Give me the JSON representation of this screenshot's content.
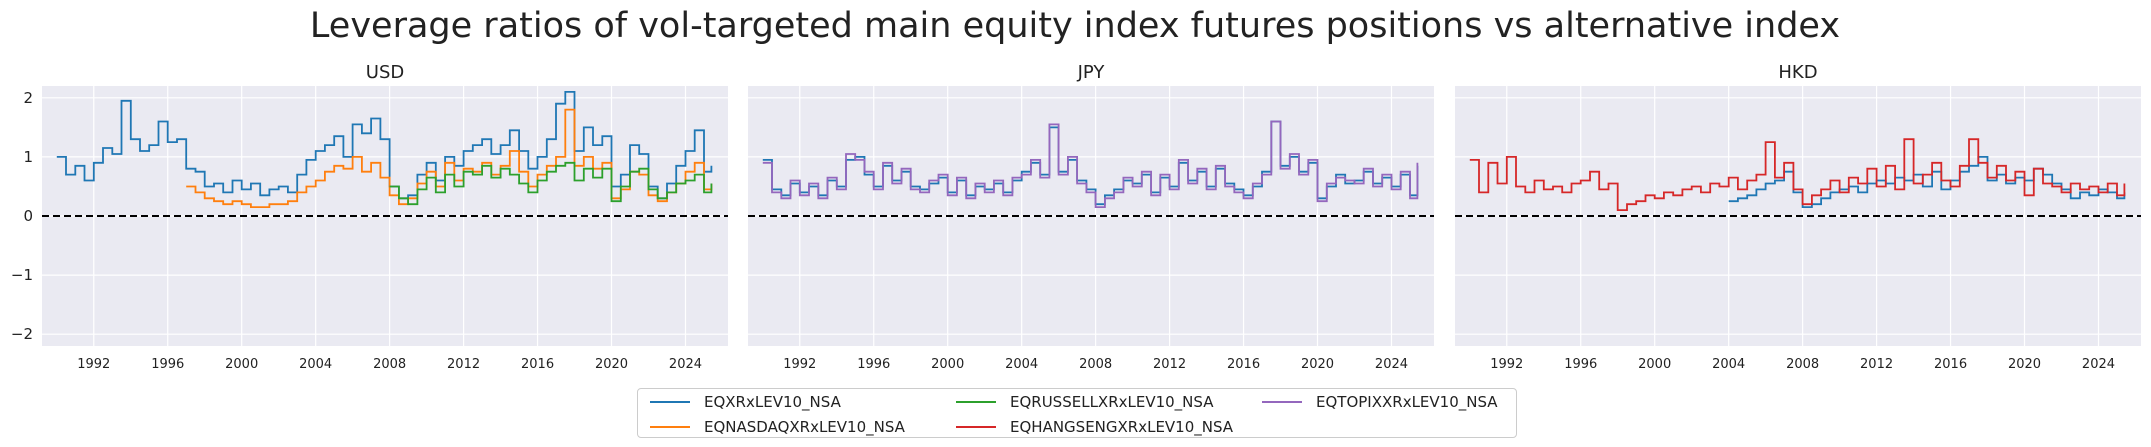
{
  "title": "Leverage ratios of vol-targeted main equity index futures positions vs alternative index",
  "colors": {
    "plot_bg": "#eaeaf2",
    "grid": "#ffffff",
    "zero_line": "#000000"
  },
  "chart_data": [
    {
      "type": "line",
      "title": "USD",
      "xlim": [
        1989.2,
        2026.3
      ],
      "ylim": [
        -2.2,
        2.2
      ],
      "yticks": [
        -2,
        -1,
        0,
        1,
        2
      ],
      "xticks": [
        1992,
        1996,
        2000,
        2004,
        2008,
        2012,
        2016,
        2020,
        2024
      ],
      "grid": true,
      "zero_line": true,
      "series": [
        {
          "name": "EQXRxLEV10_NSA",
          "color": "#1f77b4",
          "x": [
            1990.0,
            1990.5,
            1991.0,
            1991.5,
            1992.0,
            1992.5,
            1993.0,
            1993.5,
            1994.0,
            1994.5,
            1995.0,
            1995.5,
            1996.0,
            1996.5,
            1997.0,
            1997.5,
            1998.0,
            1998.5,
            1999.0,
            1999.5,
            2000.0,
            2000.5,
            2001.0,
            2001.5,
            2002.0,
            2002.5,
            2003.0,
            2003.5,
            2004.0,
            2004.5,
            2005.0,
            2005.5,
            2006.0,
            2006.5,
            2007.0,
            2007.5,
            2008.0,
            2008.5,
            2009.0,
            2009.5,
            2010.0,
            2010.5,
            2011.0,
            2011.5,
            2012.0,
            2012.5,
            2013.0,
            2013.5,
            2014.0,
            2014.5,
            2015.0,
            2015.5,
            2016.0,
            2016.5,
            2017.0,
            2017.5,
            2018.0,
            2018.5,
            2019.0,
            2019.5,
            2020.0,
            2020.5,
            2021.0,
            2021.5,
            2022.0,
            2022.5,
            2023.0,
            2023.5,
            2024.0,
            2024.5,
            2025.0,
            2025.4
          ],
          "y": [
            1.0,
            0.7,
            0.85,
            0.6,
            0.9,
            1.15,
            1.05,
            1.95,
            1.3,
            1.1,
            1.2,
            1.6,
            1.25,
            1.3,
            0.8,
            0.75,
            0.5,
            0.55,
            0.4,
            0.6,
            0.45,
            0.55,
            0.35,
            0.45,
            0.5,
            0.4,
            0.7,
            0.95,
            1.1,
            1.2,
            1.35,
            1.0,
            1.55,
            1.4,
            1.65,
            1.3,
            0.5,
            0.3,
            0.35,
            0.7,
            0.9,
            0.6,
            1.0,
            0.85,
            1.1,
            1.2,
            1.3,
            1.05,
            1.2,
            1.45,
            1.1,
            0.8,
            1.0,
            1.3,
            1.9,
            2.1,
            1.1,
            1.5,
            1.2,
            1.35,
            0.5,
            0.7,
            1.2,
            1.05,
            0.5,
            0.3,
            0.55,
            0.85,
            1.1,
            1.45,
            0.75,
            0.85
          ]
        },
        {
          "name": "EQNASDAQXRxLEV10_NSA",
          "color": "#ff7f0e",
          "x": [
            1997.0,
            1997.5,
            1998.0,
            1998.5,
            1999.0,
            1999.5,
            2000.0,
            2000.5,
            2001.0,
            2001.5,
            2002.0,
            2002.5,
            2003.0,
            2003.5,
            2004.0,
            2004.5,
            2005.0,
            2005.5,
            2006.0,
            2006.5,
            2007.0,
            2007.5,
            2008.0,
            2008.5,
            2009.0,
            2009.5,
            2010.0,
            2010.5,
            2011.0,
            2011.5,
            2012.0,
            2012.5,
            2013.0,
            2013.5,
            2014.0,
            2014.5,
            2015.0,
            2015.5,
            2016.0,
            2016.5,
            2017.0,
            2017.5,
            2018.0,
            2018.5,
            2019.0,
            2019.5,
            2020.0,
            2020.5,
            2021.0,
            2021.5,
            2022.0,
            2022.5,
            2023.0,
            2023.5,
            2024.0,
            2024.5,
            2025.0,
            2025.4
          ],
          "y": [
            0.5,
            0.4,
            0.3,
            0.25,
            0.2,
            0.25,
            0.2,
            0.15,
            0.15,
            0.2,
            0.2,
            0.25,
            0.4,
            0.5,
            0.6,
            0.75,
            0.85,
            0.8,
            1.0,
            0.75,
            0.9,
            0.65,
            0.35,
            0.2,
            0.3,
            0.55,
            0.75,
            0.5,
            0.9,
            0.6,
            0.8,
            0.75,
            0.9,
            0.7,
            0.85,
            1.1,
            0.75,
            0.5,
            0.7,
            0.85,
            1.0,
            1.8,
            0.85,
            1.0,
            0.8,
            0.9,
            0.3,
            0.45,
            0.75,
            0.7,
            0.35,
            0.25,
            0.4,
            0.55,
            0.75,
            0.9,
            0.45,
            0.55
          ]
        },
        {
          "name": "EQRUSSELLXRxLEV10_NSA",
          "color": "#2ca02c",
          "x": [
            2008.0,
            2008.5,
            2009.0,
            2009.5,
            2010.0,
            2010.5,
            2011.0,
            2011.5,
            2012.0,
            2012.5,
            2013.0,
            2013.5,
            2014.0,
            2014.5,
            2015.0,
            2015.5,
            2016.0,
            2016.5,
            2017.0,
            2017.5,
            2018.0,
            2018.5,
            2019.0,
            2019.5,
            2020.0,
            2020.5,
            2021.0,
            2021.5,
            2022.0,
            2022.5,
            2023.0,
            2023.5,
            2024.0,
            2024.5,
            2025.0,
            2025.4
          ],
          "y": [
            0.5,
            0.3,
            0.2,
            0.45,
            0.65,
            0.4,
            0.7,
            0.5,
            0.75,
            0.7,
            0.85,
            0.65,
            0.8,
            0.7,
            0.55,
            0.4,
            0.6,
            0.75,
            0.85,
            0.9,
            0.6,
            0.8,
            0.65,
            0.8,
            0.25,
            0.5,
            0.75,
            0.8,
            0.45,
            0.3,
            0.4,
            0.55,
            0.6,
            0.7,
            0.4,
            0.55
          ]
        }
      ]
    },
    {
      "type": "line",
      "title": "JPY",
      "xlim": [
        1989.2,
        2026.3
      ],
      "ylim": [
        -2.2,
        2.2
      ],
      "yticks": [
        -2,
        -1,
        0,
        1,
        2
      ],
      "xticks": [
        1992,
        1996,
        2000,
        2004,
        2008,
        2012,
        2016,
        2020,
        2024
      ],
      "grid": true,
      "zero_line": true,
      "series": [
        {
          "name": "EQXRxLEV10_NSA",
          "color": "#1f77b4",
          "x": [
            1990.0,
            1990.5,
            1991.0,
            1991.5,
            1992.0,
            1992.5,
            1993.0,
            1993.5,
            1994.0,
            1994.5,
            1995.0,
            1995.5,
            1996.0,
            1996.5,
            1997.0,
            1997.5,
            1998.0,
            1998.5,
            1999.0,
            1999.5,
            2000.0,
            2000.5,
            2001.0,
            2001.5,
            2002.0,
            2002.5,
            2003.0,
            2003.5,
            2004.0,
            2004.5,
            2005.0,
            2005.5,
            2006.0,
            2006.5,
            2007.0,
            2007.5,
            2008.0,
            2008.5,
            2009.0,
            2009.5,
            2010.0,
            2010.5,
            2011.0,
            2011.5,
            2012.0,
            2012.5,
            2013.0,
            2013.5,
            2014.0,
            2014.5,
            2015.0,
            2015.5,
            2016.0,
            2016.5,
            2017.0,
            2017.5,
            2018.0,
            2018.5,
            2019.0,
            2019.5,
            2020.0,
            2020.5,
            2021.0,
            2021.5,
            2022.0,
            2022.5,
            2023.0,
            2023.5,
            2024.0,
            2024.5,
            2025.0,
            2025.4
          ],
          "y": [
            0.95,
            0.45,
            0.35,
            0.55,
            0.4,
            0.5,
            0.35,
            0.6,
            0.5,
            0.95,
            1.0,
            0.7,
            0.5,
            0.85,
            0.6,
            0.75,
            0.5,
            0.45,
            0.55,
            0.65,
            0.4,
            0.6,
            0.35,
            0.5,
            0.45,
            0.55,
            0.4,
            0.6,
            0.75,
            0.9,
            0.7,
            1.5,
            0.75,
            0.95,
            0.6,
            0.45,
            0.2,
            0.35,
            0.45,
            0.6,
            0.55,
            0.7,
            0.4,
            0.65,
            0.5,
            0.9,
            0.6,
            0.75,
            0.5,
            0.8,
            0.55,
            0.45,
            0.35,
            0.5,
            0.75,
            1.6,
            0.85,
            1.0,
            0.75,
            0.9,
            0.3,
            0.5,
            0.7,
            0.55,
            0.6,
            0.75,
            0.55,
            0.65,
            0.5,
            0.7,
            0.35,
            0.85
          ]
        },
        {
          "name": "EQTOPIXXRxLEV10_NSA",
          "color": "#9467bd",
          "x": [
            1990.0,
            1990.5,
            1991.0,
            1991.5,
            1992.0,
            1992.5,
            1993.0,
            1993.5,
            1994.0,
            1994.5,
            1995.0,
            1995.5,
            1996.0,
            1996.5,
            1997.0,
            1997.5,
            1998.0,
            1998.5,
            1999.0,
            1999.5,
            2000.0,
            2000.5,
            2001.0,
            2001.5,
            2002.0,
            2002.5,
            2003.0,
            2003.5,
            2004.0,
            2004.5,
            2005.0,
            2005.5,
            2006.0,
            2006.5,
            2007.0,
            2007.5,
            2008.0,
            2008.5,
            2009.0,
            2009.5,
            2010.0,
            2010.5,
            2011.0,
            2011.5,
            2012.0,
            2012.5,
            2013.0,
            2013.5,
            2014.0,
            2014.5,
            2015.0,
            2015.5,
            2016.0,
            2016.5,
            2017.0,
            2017.5,
            2018.0,
            2018.5,
            2019.0,
            2019.5,
            2020.0,
            2020.5,
            2021.0,
            2021.5,
            2022.0,
            2022.5,
            2023.0,
            2023.5,
            2024.0,
            2024.5,
            2025.0,
            2025.4
          ],
          "y": [
            0.9,
            0.4,
            0.3,
            0.6,
            0.35,
            0.55,
            0.3,
            0.65,
            0.45,
            1.05,
            0.95,
            0.75,
            0.45,
            0.9,
            0.55,
            0.8,
            0.45,
            0.4,
            0.6,
            0.7,
            0.35,
            0.65,
            0.3,
            0.55,
            0.4,
            0.6,
            0.35,
            0.65,
            0.7,
            0.95,
            0.65,
            1.55,
            0.7,
            1.0,
            0.55,
            0.4,
            0.15,
            0.3,
            0.4,
            0.65,
            0.5,
            0.75,
            0.35,
            0.7,
            0.45,
            0.95,
            0.55,
            0.8,
            0.45,
            0.85,
            0.5,
            0.4,
            0.3,
            0.55,
            0.7,
            1.6,
            0.8,
            1.05,
            0.7,
            0.95,
            0.25,
            0.55,
            0.65,
            0.6,
            0.55,
            0.8,
            0.5,
            0.7,
            0.45,
            0.75,
            0.3,
            0.9
          ]
        }
      ]
    },
    {
      "type": "line",
      "title": "HKD",
      "xlim": [
        1989.2,
        2026.3
      ],
      "ylim": [
        -2.2,
        2.2
      ],
      "yticks": [
        -2,
        -1,
        0,
        1,
        2
      ],
      "xticks": [
        1992,
        1996,
        2000,
        2004,
        2008,
        2012,
        2016,
        2020,
        2024
      ],
      "grid": true,
      "zero_line": true,
      "series": [
        {
          "name": "EQXRxLEV10_NSA",
          "color": "#1f77b4",
          "x": [
            2004.0,
            2004.5,
            2005.0,
            2005.5,
            2006.0,
            2006.5,
            2007.0,
            2007.5,
            2008.0,
            2008.5,
            2009.0,
            2009.5,
            2010.0,
            2010.5,
            2011.0,
            2011.5,
            2012.0,
            2012.5,
            2013.0,
            2013.5,
            2014.0,
            2014.5,
            2015.0,
            2015.5,
            2016.0,
            2016.5,
            2017.0,
            2017.5,
            2018.0,
            2018.5,
            2019.0,
            2019.5,
            2020.0,
            2020.5,
            2021.0,
            2021.5,
            2022.0,
            2022.5,
            2023.0,
            2023.5,
            2024.0,
            2024.5,
            2025.0,
            2025.4
          ],
          "y": [
            0.25,
            0.3,
            0.35,
            0.45,
            0.55,
            0.6,
            0.75,
            0.4,
            0.15,
            0.2,
            0.3,
            0.4,
            0.45,
            0.5,
            0.4,
            0.55,
            0.6,
            0.55,
            0.65,
            0.6,
            0.7,
            0.5,
            0.75,
            0.45,
            0.6,
            0.75,
            0.85,
            1.0,
            0.6,
            0.7,
            0.55,
            0.65,
            0.6,
            0.8,
            0.7,
            0.55,
            0.45,
            0.3,
            0.4,
            0.35,
            0.45,
            0.4,
            0.3,
            0.4
          ]
        },
        {
          "name": "EQHANGSENGXRxLEV10_NSA",
          "color": "#d62728",
          "x": [
            1990.0,
            1990.5,
            1991.0,
            1991.5,
            1992.0,
            1992.5,
            1993.0,
            1993.5,
            1994.0,
            1994.5,
            1995.0,
            1995.5,
            1996.0,
            1996.5,
            1997.0,
            1997.5,
            1998.0,
            1998.5,
            1999.0,
            1999.5,
            2000.0,
            2000.5,
            2001.0,
            2001.5,
            2002.0,
            2002.5,
            2003.0,
            2003.5,
            2004.0,
            2004.5,
            2005.0,
            2005.5,
            2006.0,
            2006.5,
            2007.0,
            2007.5,
            2008.0,
            2008.5,
            2009.0,
            2009.5,
            2010.0,
            2010.5,
            2011.0,
            2011.5,
            2012.0,
            2012.5,
            2013.0,
            2013.5,
            2014.0,
            2014.5,
            2015.0,
            2015.5,
            2016.0,
            2016.5,
            2017.0,
            2017.5,
            2018.0,
            2018.5,
            2019.0,
            2019.5,
            2020.0,
            2020.5,
            2021.0,
            2021.5,
            2022.0,
            2022.5,
            2023.0,
            2023.5,
            2024.0,
            2024.5,
            2025.0,
            2025.4
          ],
          "y": [
            0.95,
            0.4,
            0.9,
            0.55,
            1.0,
            0.5,
            0.4,
            0.6,
            0.45,
            0.5,
            0.4,
            0.55,
            0.6,
            0.75,
            0.45,
            0.55,
            0.1,
            0.2,
            0.25,
            0.35,
            0.3,
            0.4,
            0.35,
            0.45,
            0.5,
            0.4,
            0.55,
            0.5,
            0.65,
            0.45,
            0.6,
            0.7,
            1.25,
            0.65,
            0.9,
            0.45,
            0.2,
            0.35,
            0.45,
            0.6,
            0.4,
            0.65,
            0.55,
            0.8,
            0.5,
            0.85,
            0.45,
            1.3,
            0.55,
            0.7,
            0.9,
            0.6,
            0.5,
            0.85,
            1.3,
            0.9,
            0.65,
            0.85,
            0.6,
            0.75,
            0.35,
            0.8,
            0.55,
            0.5,
            0.4,
            0.55,
            0.45,
            0.5,
            0.4,
            0.55,
            0.35,
            0.55
          ]
        }
      ]
    }
  ],
  "legend": [
    {
      "label": "EQXRxLEV10_NSA",
      "color": "#1f77b4"
    },
    {
      "label": "EQNASDAQXRxLEV10_NSA",
      "color": "#ff7f0e"
    },
    {
      "label": "EQRUSSELLXRxLEV10_NSA",
      "color": "#2ca02c"
    },
    {
      "label": "EQHANGSENGXRxLEV10_NSA",
      "color": "#d62728"
    },
    {
      "label": "EQTOPIXXRxLEV10_NSA",
      "color": "#9467bd"
    }
  ]
}
